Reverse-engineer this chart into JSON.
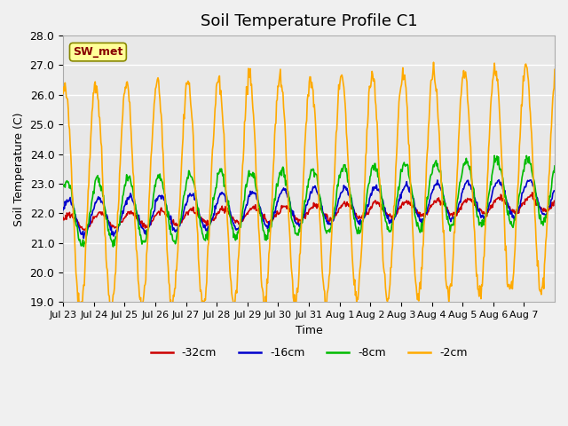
{
  "title": "Soil Temperature Profile C1",
  "xlabel": "Time",
  "ylabel": "Soil Temperature (C)",
  "ylim": [
    19.0,
    28.0
  ],
  "yticks": [
    19.0,
    20.0,
    21.0,
    22.0,
    23.0,
    24.0,
    25.0,
    26.0,
    27.0,
    28.0
  ],
  "xtick_labels": [
    "Jul 23",
    "Jul 24",
    "Jul 25",
    "Jul 26",
    "Jul 27",
    "Jul 28",
    "Jul 29",
    "Jul 30",
    "Jul 31",
    "Aug 1",
    "Aug 2",
    "Aug 3",
    "Aug 4",
    "Aug 5",
    "Aug 6",
    "Aug 7"
  ],
  "legend_label": "SW_met",
  "series_labels": [
    "-32cm",
    "-16cm",
    "-8cm",
    "-2cm"
  ],
  "series_colors": [
    "#cc0000",
    "#0000cc",
    "#00bb00",
    "#ffaa00"
  ],
  "fig_bg_color": "#f0f0f0",
  "plot_bg_color": "#e8e8e8",
  "grid_color": "#ffffff",
  "annotation_box_color": "#ffff99",
  "annotation_text_color": "#880000",
  "n_days": 16,
  "pts_per_day": 48,
  "trend_32": [
    21.7,
    0.04
  ],
  "amp_32": 0.25,
  "phase_32": -0.3,
  "noise_32": 0.05,
  "trend_16": [
    21.85,
    0.045
  ],
  "amp_16": 0.6,
  "phase_16": -0.5,
  "noise_16": 0.05,
  "trend_8": [
    22.0,
    0.05
  ],
  "amp_8": 1.1,
  "phase_8": -0.8,
  "noise_8": 0.08,
  "trend_2": [
    22.5,
    0.04
  ],
  "amp_2": 3.8,
  "phase_2": -1.2,
  "noise_2": 0.15
}
